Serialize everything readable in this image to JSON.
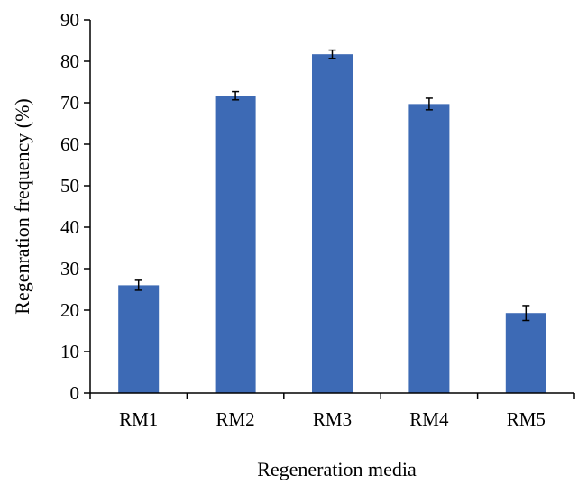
{
  "chart_data": {
    "type": "bar",
    "title": "",
    "xlabel": "Regeneration media",
    "ylabel": "Regenration frequency (%)",
    "categories": [
      "RM1",
      "RM2",
      "RM3",
      "RM4",
      "RM5"
    ],
    "values": [
      26,
      71.7,
      81.7,
      69.7,
      19.3
    ],
    "error": [
      1.2,
      1.0,
      1.0,
      1.4,
      1.8
    ],
    "ylim": [
      0,
      90
    ],
    "yticks": [
      0,
      10,
      20,
      30,
      40,
      50,
      60,
      70,
      80,
      90
    ],
    "ytick_labels": [
      "0",
      "10",
      "20",
      "30",
      "40",
      "50",
      "60",
      "70",
      "80",
      "90"
    ],
    "grid": false,
    "legend": "none",
    "bar_color": "#3D6AB5"
  }
}
